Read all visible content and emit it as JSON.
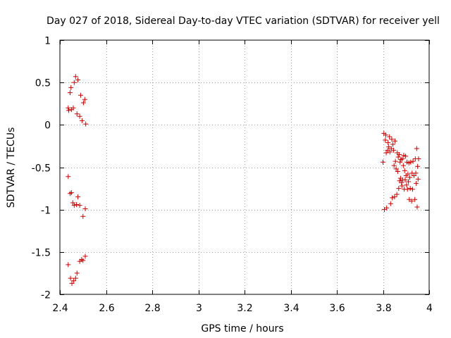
{
  "chart_data": {
    "type": "scatter",
    "title": "Day 027 of 2018, Sidereal Day-to-day VTEC variation (SDTVAR) for receiver yell",
    "xlabel": "GPS time / hours",
    "ylabel": "SDTVAR / TECUs",
    "xlim": [
      2.4,
      4.0
    ],
    "ylim": [
      -2,
      1
    ],
    "xticks": [
      2.4,
      2.6,
      2.8,
      3.0,
      3.2,
      3.4,
      3.6,
      3.8,
      4.0
    ],
    "xtick_labels": [
      "2.4",
      "2.6",
      "2.8",
      "3",
      "3.2",
      "3.4",
      "3.6",
      "3.8",
      "4"
    ],
    "yticks": [
      -2,
      -1.5,
      -1,
      -0.5,
      0,
      0.5,
      1
    ],
    "ytick_labels": [
      "-2",
      "-1.5",
      "-1",
      "-0.5",
      "0",
      "0.5",
      "1"
    ],
    "grid": true,
    "marker": "+",
    "color": "#cc0000",
    "series": [
      {
        "name": "SDTVAR",
        "points": [
          [
            2.436,
            0.2
          ],
          [
            2.438,
            0.17
          ],
          [
            2.444,
            0.38
          ],
          [
            2.448,
            0.44
          ],
          [
            2.45,
            0.18
          ],
          [
            2.458,
            0.2
          ],
          [
            2.462,
            0.5
          ],
          [
            2.468,
            0.57
          ],
          [
            2.474,
            0.13
          ],
          [
            2.478,
            0.53
          ],
          [
            2.486,
            0.1
          ],
          [
            2.49,
            0.35
          ],
          [
            2.496,
            0.05
          ],
          [
            2.502,
            0.26
          ],
          [
            2.508,
            0.3
          ],
          [
            2.512,
            0.01
          ],
          [
            2.436,
            -0.61
          ],
          [
            2.444,
            -0.81
          ],
          [
            2.45,
            -0.8
          ],
          [
            2.456,
            -0.92
          ],
          [
            2.462,
            -0.95
          ],
          [
            2.472,
            -0.94
          ],
          [
            2.478,
            -0.85
          ],
          [
            2.486,
            -0.95
          ],
          [
            2.5,
            -1.08
          ],
          [
            2.51,
            -0.99
          ],
          [
            2.436,
            -1.65
          ],
          [
            2.446,
            -1.81
          ],
          [
            2.452,
            -1.87
          ],
          [
            2.46,
            -1.84
          ],
          [
            2.468,
            -1.81
          ],
          [
            2.474,
            -1.75
          ],
          [
            2.486,
            -1.61
          ],
          [
            2.494,
            -1.59
          ],
          [
            2.5,
            -1.6
          ],
          [
            2.51,
            -1.55
          ],
          [
            3.8,
            -0.44
          ],
          [
            3.804,
            -0.1
          ],
          [
            3.806,
            -1.0
          ],
          [
            3.81,
            -0.18
          ],
          [
            3.812,
            -0.12
          ],
          [
            3.814,
            -0.33
          ],
          [
            3.816,
            -0.98
          ],
          [
            3.82,
            -0.3
          ],
          [
            3.822,
            -0.21
          ],
          [
            3.825,
            -0.26
          ],
          [
            3.828,
            -0.14
          ],
          [
            3.83,
            -0.32
          ],
          [
            3.833,
            -0.93
          ],
          [
            3.836,
            -0.28
          ],
          [
            3.838,
            -0.17
          ],
          [
            3.84,
            -0.86
          ],
          [
            3.843,
            -0.23
          ],
          [
            3.846,
            -0.3
          ],
          [
            3.848,
            -0.48
          ],
          [
            3.85,
            -0.85
          ],
          [
            3.852,
            -0.19
          ],
          [
            3.854,
            -0.43
          ],
          [
            3.857,
            -0.52
          ],
          [
            3.86,
            -0.82
          ],
          [
            3.862,
            -0.33
          ],
          [
            3.864,
            -0.55
          ],
          [
            3.866,
            -0.38
          ],
          [
            3.868,
            -0.75
          ],
          [
            3.87,
            -0.35
          ],
          [
            3.872,
            -0.66
          ],
          [
            3.874,
            -0.44
          ],
          [
            3.876,
            -0.63
          ],
          [
            3.878,
            -0.41
          ],
          [
            3.88,
            -0.68
          ],
          [
            3.882,
            -0.72
          ],
          [
            3.884,
            -0.4
          ],
          [
            3.886,
            -0.65
          ],
          [
            3.888,
            -0.48
          ],
          [
            3.89,
            -0.36
          ],
          [
            3.892,
            -0.76
          ],
          [
            3.894,
            -0.54
          ],
          [
            3.896,
            -0.65
          ],
          [
            3.898,
            -0.37
          ],
          [
            3.9,
            -0.6
          ],
          [
            3.902,
            -0.71
          ],
          [
            3.904,
            -0.44
          ],
          [
            3.906,
            -0.76
          ],
          [
            3.908,
            -0.58
          ],
          [
            3.91,
            -0.67
          ],
          [
            3.912,
            -0.45
          ],
          [
            3.914,
            -0.88
          ],
          [
            3.916,
            -0.62
          ],
          [
            3.918,
            -0.75
          ],
          [
            3.92,
            -0.44
          ],
          [
            3.924,
            -0.9
          ],
          [
            3.926,
            -0.57
          ],
          [
            3.928,
            -0.76
          ],
          [
            3.93,
            -0.43
          ],
          [
            3.934,
            -0.6
          ],
          [
            3.938,
            -0.88
          ],
          [
            3.94,
            -0.4
          ],
          [
            3.942,
            -0.57
          ],
          [
            3.944,
            -0.69
          ],
          [
            3.946,
            -0.28
          ],
          [
            3.948,
            -0.97
          ],
          [
            3.95,
            -0.49
          ],
          [
            3.952,
            -0.64
          ],
          [
            3.954,
            -0.4
          ]
        ]
      }
    ]
  }
}
